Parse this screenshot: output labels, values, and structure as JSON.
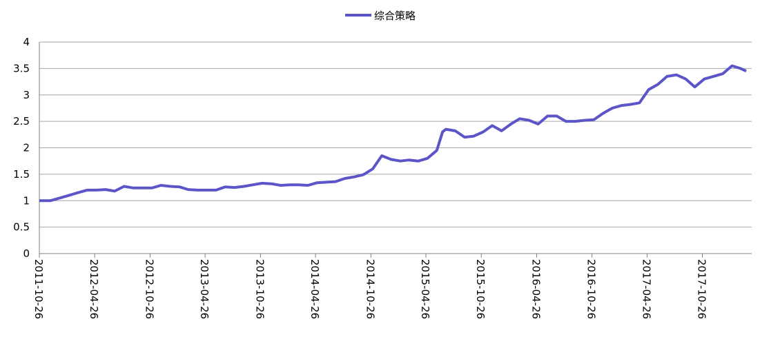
{
  "chart_data": {
    "type": "line",
    "x": [
      "2011-10-26",
      "2011-12-01",
      "2012-01-01",
      "2012-02-01",
      "2012-03-01",
      "2012-04-01",
      "2012-05-01",
      "2012-06-01",
      "2012-07-01",
      "2012-08-01",
      "2012-09-01",
      "2012-10-01",
      "2012-11-01",
      "2012-12-01",
      "2013-01-01",
      "2013-02-01",
      "2013-03-01",
      "2013-04-01",
      "2013-05-01",
      "2013-06-01",
      "2013-07-01",
      "2013-08-01",
      "2013-09-01",
      "2013-10-01",
      "2013-11-01",
      "2013-12-01",
      "2014-01-01",
      "2014-02-01",
      "2014-03-01",
      "2014-04-01",
      "2014-05-01",
      "2014-06-01",
      "2014-07-01",
      "2014-08-01",
      "2014-09-01",
      "2014-10-01",
      "2014-11-01",
      "2014-12-01",
      "2015-01-01",
      "2015-02-01",
      "2015-03-01",
      "2015-04-01",
      "2015-05-01",
      "2015-06-01",
      "2015-06-20",
      "2015-07-01",
      "2015-08-01",
      "2015-09-01",
      "2015-10-01",
      "2015-11-01",
      "2015-12-01",
      "2016-01-01",
      "2016-02-01",
      "2016-03-01",
      "2016-04-01",
      "2016-05-01",
      "2016-06-01",
      "2016-07-01",
      "2016-08-01",
      "2016-09-01",
      "2016-10-01",
      "2016-11-01",
      "2016-12-01",
      "2017-01-01",
      "2017-02-01",
      "2017-03-01",
      "2017-04-01",
      "2017-05-01",
      "2017-06-01",
      "2017-07-01",
      "2017-08-01",
      "2017-09-01",
      "2017-10-01",
      "2017-11-01",
      "2017-12-01",
      "2018-01-01",
      "2018-02-01",
      "2018-03-01",
      "2018-03-20"
    ],
    "series": [
      {
        "name": "综合策略",
        "color": "#5b55c8",
        "values": [
          1.0,
          1.0,
          1.05,
          1.1,
          1.15,
          1.2,
          1.2,
          1.21,
          1.18,
          1.27,
          1.24,
          1.24,
          1.24,
          1.29,
          1.27,
          1.26,
          1.21,
          1.2,
          1.2,
          1.2,
          1.26,
          1.25,
          1.27,
          1.3,
          1.33,
          1.32,
          1.29,
          1.3,
          1.3,
          1.29,
          1.34,
          1.35,
          1.36,
          1.42,
          1.45,
          1.49,
          1.6,
          1.85,
          1.78,
          1.75,
          1.77,
          1.75,
          1.8,
          1.95,
          2.3,
          2.35,
          2.32,
          2.2,
          2.22,
          2.3,
          2.42,
          2.32,
          2.45,
          2.55,
          2.52,
          2.45,
          2.6,
          2.6,
          2.5,
          2.5,
          2.52,
          2.53,
          2.65,
          2.75,
          2.8,
          2.82,
          2.85,
          3.1,
          3.2,
          3.35,
          3.38,
          3.3,
          3.15,
          3.3,
          3.35,
          3.4,
          3.55,
          3.5,
          3.45
        ]
      }
    ],
    "xlim": [
      "2011-10-26",
      "2018-04-07"
    ],
    "xticks": [
      "2011-10-26",
      "2012-04-26",
      "2012-10-26",
      "2013-04-26",
      "2013-10-26",
      "2014-04-26",
      "2014-10-26",
      "2015-04-26",
      "2015-10-26",
      "2016-04-26",
      "2016-10-26",
      "2017-04-26",
      "2017-10-26"
    ],
    "ylim": [
      0,
      4
    ],
    "yticks": [
      0,
      0.5,
      1,
      1.5,
      2,
      2.5,
      3,
      3.5,
      4
    ],
    "grid": true,
    "legend": "top"
  }
}
